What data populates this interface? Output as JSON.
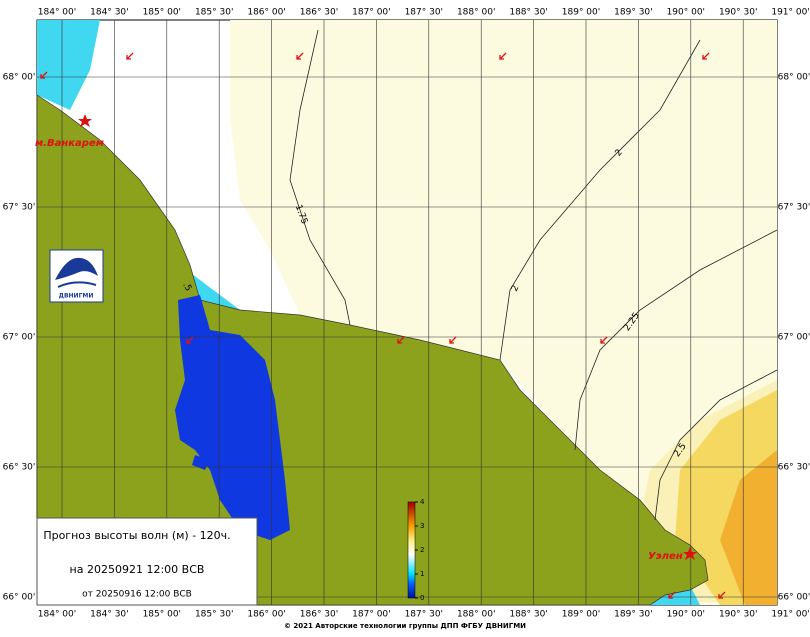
{
  "map": {
    "lon_labels": [
      "184° 00'",
      "184° 30'",
      "185° 00'",
      "185° 30'",
      "186° 00'",
      "186° 30'",
      "187° 00'",
      "187° 30'",
      "188° 00'",
      "188° 30'",
      "189° 00'",
      "189° 30'",
      "190° 00'",
      "190° 30'",
      "191° 00'"
    ],
    "lat_labels": [
      "68° 00'",
      "67° 30'",
      "67° 00'",
      "66° 30'",
      "66° 00'"
    ],
    "places": [
      "м.Ванкарем",
      "Уэлен"
    ],
    "contours": [
      "1.75",
      "2",
      "2",
      "2.25",
      "2.5",
      ".5"
    ],
    "logo": "ДВНИГМИ",
    "colorbar": {
      "ticks": [
        0,
        1,
        2,
        3,
        4
      ],
      "lim": [
        0,
        4
      ]
    },
    "info": {
      "title": "Прогноз высоты волн (м) - 120ч.",
      "valid": "на 20250921 12:00 ВСВ",
      "issued": "от 20250916 12:00 ВСВ"
    },
    "copyright": "© 2021 Авторские технологии группы ДПП ФГБУ ДВНИГМИ"
  }
}
